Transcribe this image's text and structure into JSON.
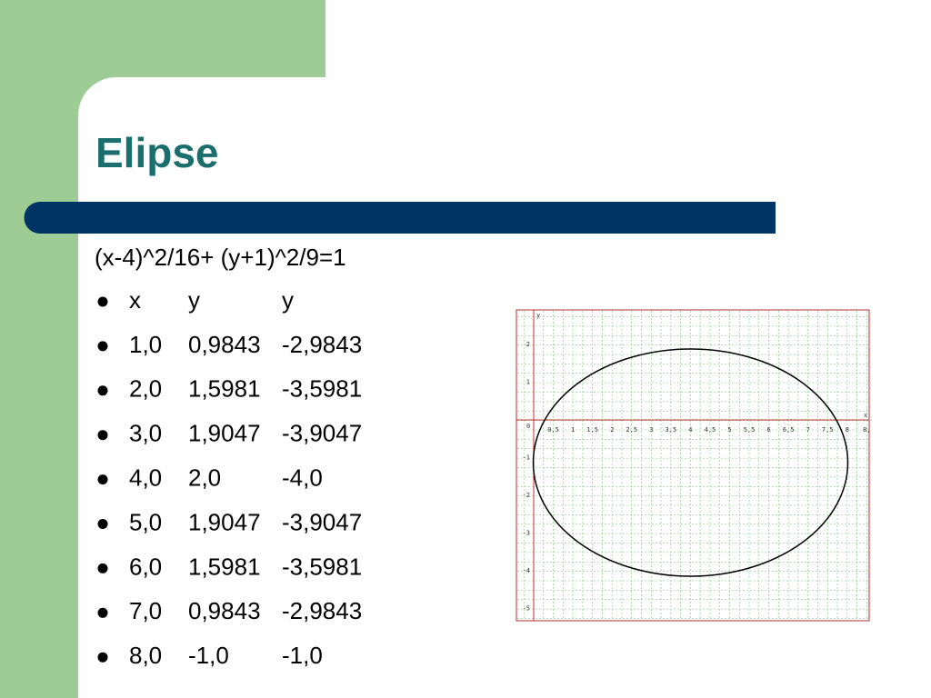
{
  "title": "Elipse",
  "equation": "(x-4)^2/16+ (y+1)^2/9=1",
  "rows": [
    [
      "x",
      "y",
      "y"
    ],
    [
      "1,0",
      "0,9843",
      "-2,9843"
    ],
    [
      "2,0",
      "1,5981",
      "-3,5981"
    ],
    [
      "3,0",
      "1,9047",
      "-3,9047"
    ],
    [
      "4,0",
      "2,0",
      "-4,0"
    ],
    [
      "5,0",
      "1,9047",
      "-3,9047"
    ],
    [
      "6,0",
      "1,5981",
      "-3,5981"
    ],
    [
      "7,0",
      "0,9843",
      "-2,9843"
    ],
    [
      "8,0",
      "-1,0",
      "-1,0"
    ]
  ],
  "graph": {
    "x_label": "x",
    "y_label": "y",
    "origin": "0",
    "xticks": [
      "0,5",
      "1",
      "1,5",
      "2",
      "2,5",
      "3",
      "3,5",
      "4",
      "4,5",
      "5",
      "5,5",
      "6",
      "6,5",
      "7",
      "7,5",
      "8",
      "8,"
    ],
    "yticks": [
      "2",
      "1",
      "-1",
      "-2",
      "-3",
      "-4",
      "-5"
    ]
  }
}
